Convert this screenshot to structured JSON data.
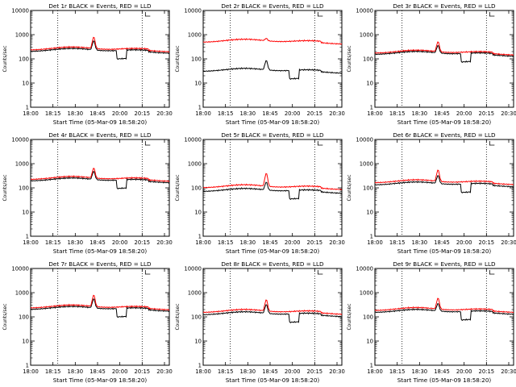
{
  "chart_data": [
    {
      "type": "line",
      "title": "Det 1r BLACK = Events, RED = LLD",
      "xlabel": "Start Time (05-Mar-09 18:58:20)",
      "ylabel": "Counts/sec",
      "x_ticks": [
        "18:00",
        "18:15",
        "18:30",
        "18:45",
        "20:00",
        "20:15",
        "20:30"
      ],
      "y_ticks": [
        "1",
        "10",
        "100",
        "1000",
        "10000"
      ],
      "y_scale": "log",
      "ylim": [
        1,
        10000
      ],
      "markers": [
        "18:15",
        "20:15"
      ],
      "series": [
        {
          "name": "Events",
          "color": "#000000",
          "base": 200,
          "spike": 520,
          "dip": true
        },
        {
          "name": "LLD",
          "color": "#ff0000",
          "base": 230,
          "spike": 750,
          "dip": false
        }
      ]
    },
    {
      "type": "line",
      "title": "Det 2r BLACK = Events, RED = LLD",
      "xlabel": "Start Time (05-Mar-09 18:58:20)",
      "ylabel": "Counts/sec",
      "x_ticks": [
        "18:00",
        "18:15",
        "18:30",
        "18:45",
        "20:00",
        "20:15",
        "20:30"
      ],
      "y_ticks": [
        "1",
        "10",
        "100",
        "1000",
        "10000"
      ],
      "y_scale": "log",
      "ylim": [
        1,
        10000
      ],
      "markers": [
        "18:15",
        "20:15"
      ],
      "series": [
        {
          "name": "Events",
          "color": "#000000",
          "base": 30,
          "spike": 80,
          "dip": true
        },
        {
          "name": "LLD",
          "color": "#ff0000",
          "base": 480,
          "spike": 620,
          "dip": false
        }
      ]
    },
    {
      "type": "line",
      "title": "Det 3r BLACK = Events, RED = LLD",
      "xlabel": "Start Time (05-Mar-09 18:58:20)",
      "ylabel": "Counts/sec",
      "x_ticks": [
        "18:00",
        "18:15",
        "18:30",
        "18:45",
        "20:00",
        "20:15",
        "20:30"
      ],
      "y_ticks": [
        "1",
        "10",
        "100",
        "1000",
        "10000"
      ],
      "y_scale": "log",
      "ylim": [
        1,
        10000
      ],
      "markers": [
        "18:15",
        "20:15"
      ],
      "series": [
        {
          "name": "Events",
          "color": "#000000",
          "base": 150,
          "spike": 330,
          "dip": true
        },
        {
          "name": "LLD",
          "color": "#ff0000",
          "base": 170,
          "spike": 480,
          "dip": false
        }
      ]
    },
    {
      "type": "line",
      "title": "Det 4r BLACK = Events, RED = LLD",
      "xlabel": "Start Time (05-Mar-09 18:58:20)",
      "ylabel": "Counts/sec",
      "x_ticks": [
        "18:00",
        "18:15",
        "18:30",
        "18:45",
        "20:00",
        "20:15",
        "20:30"
      ],
      "y_ticks": [
        "1",
        "10",
        "100",
        "1000",
        "10000"
      ],
      "y_scale": "log",
      "ylim": [
        1,
        10000
      ],
      "markers": [
        "18:15",
        "20:15"
      ],
      "series": [
        {
          "name": "Events",
          "color": "#000000",
          "base": 190,
          "spike": 450,
          "dip": true
        },
        {
          "name": "LLD",
          "color": "#ff0000",
          "base": 220,
          "spike": 620,
          "dip": false
        }
      ]
    },
    {
      "type": "line",
      "title": "Det 5r BLACK = Events, RED = LLD",
      "xlabel": "Start Time (05-Mar-09 18:58:20)",
      "ylabel": "Counts/sec",
      "x_ticks": [
        "18:00",
        "18:15",
        "18:30",
        "18:45",
        "20:00",
        "20:15",
        "20:30"
      ],
      "y_ticks": [
        "1",
        "10",
        "100",
        "1000",
        "10000"
      ],
      "y_scale": "log",
      "ylim": [
        1,
        10000
      ],
      "markers": [
        "18:15",
        "20:15"
      ],
      "series": [
        {
          "name": "Events",
          "color": "#000000",
          "base": 70,
          "spike": 160,
          "dip": true
        },
        {
          "name": "LLD",
          "color": "#ff0000",
          "base": 100,
          "spike": 380,
          "dip": false
        }
      ]
    },
    {
      "type": "line",
      "title": "Det 6r BLACK = Events, RED = LLD",
      "xlabel": "Start Time (05-Mar-09 18:58:20)",
      "ylabel": "Counts/sec",
      "x_ticks": [
        "18:00",
        "18:15",
        "18:30",
        "18:45",
        "20:00",
        "20:15",
        "20:30"
      ],
      "y_ticks": [
        "1",
        "10",
        "100",
        "1000",
        "10000"
      ],
      "y_scale": "log",
      "ylim": [
        1,
        10000
      ],
      "markers": [
        "18:15",
        "20:15"
      ],
      "series": [
        {
          "name": "Events",
          "color": "#000000",
          "base": 130,
          "spike": 300,
          "dip": true
        },
        {
          "name": "LLD",
          "color": "#ff0000",
          "base": 160,
          "spike": 520,
          "dip": false
        }
      ]
    },
    {
      "type": "line",
      "title": "Det 7r BLACK = Events, RED = LLD",
      "xlabel": "Start Time (05-Mar-09 18:58:20)",
      "ylabel": "Counts/sec",
      "x_ticks": [
        "18:00",
        "18:15",
        "18:30",
        "18:45",
        "20:00",
        "20:15",
        "20:30"
      ],
      "y_ticks": [
        "1",
        "10",
        "100",
        "1000",
        "10000"
      ],
      "y_scale": "log",
      "ylim": [
        1,
        10000
      ],
      "markers": [
        "18:15",
        "20:15"
      ],
      "series": [
        {
          "name": "Events",
          "color": "#000000",
          "base": 200,
          "spike": 520,
          "dip": true
        },
        {
          "name": "LLD",
          "color": "#ff0000",
          "base": 230,
          "spike": 750,
          "dip": false
        }
      ]
    },
    {
      "type": "line",
      "title": "Det 8r BLACK = Events, RED = LLD",
      "xlabel": "Start Time (05-Mar-09 18:58:20)",
      "ylabel": "Counts/sec",
      "x_ticks": [
        "18:00",
        "18:15",
        "18:30",
        "18:45",
        "20:00",
        "20:15",
        "20:30"
      ],
      "y_ticks": [
        "1",
        "10",
        "100",
        "1000",
        "10000"
      ],
      "y_scale": "log",
      "ylim": [
        1,
        10000
      ],
      "markers": [
        "18:15",
        "20:15"
      ],
      "series": [
        {
          "name": "Events",
          "color": "#000000",
          "base": 120,
          "spike": 300,
          "dip": true
        },
        {
          "name": "LLD",
          "color": "#ff0000",
          "base": 150,
          "spike": 480,
          "dip": false
        }
      ]
    },
    {
      "type": "line",
      "title": "Det 9r BLACK = Events, RED = LLD",
      "xlabel": "Start Time (05-Mar-09 18:58:20)",
      "ylabel": "Counts/sec",
      "x_ticks": [
        "18:00",
        "18:15",
        "18:30",
        "18:45",
        "20:00",
        "20:15",
        "20:30"
      ],
      "y_ticks": [
        "1",
        "10",
        "100",
        "1000",
        "10000"
      ],
      "y_scale": "log",
      "ylim": [
        1,
        10000
      ],
      "markers": [
        "18:15",
        "20:15"
      ],
      "series": [
        {
          "name": "Events",
          "color": "#000000",
          "base": 150,
          "spike": 330,
          "dip": true
        },
        {
          "name": "LLD",
          "color": "#ff0000",
          "base": 180,
          "spike": 560,
          "dip": false
        }
      ]
    }
  ]
}
